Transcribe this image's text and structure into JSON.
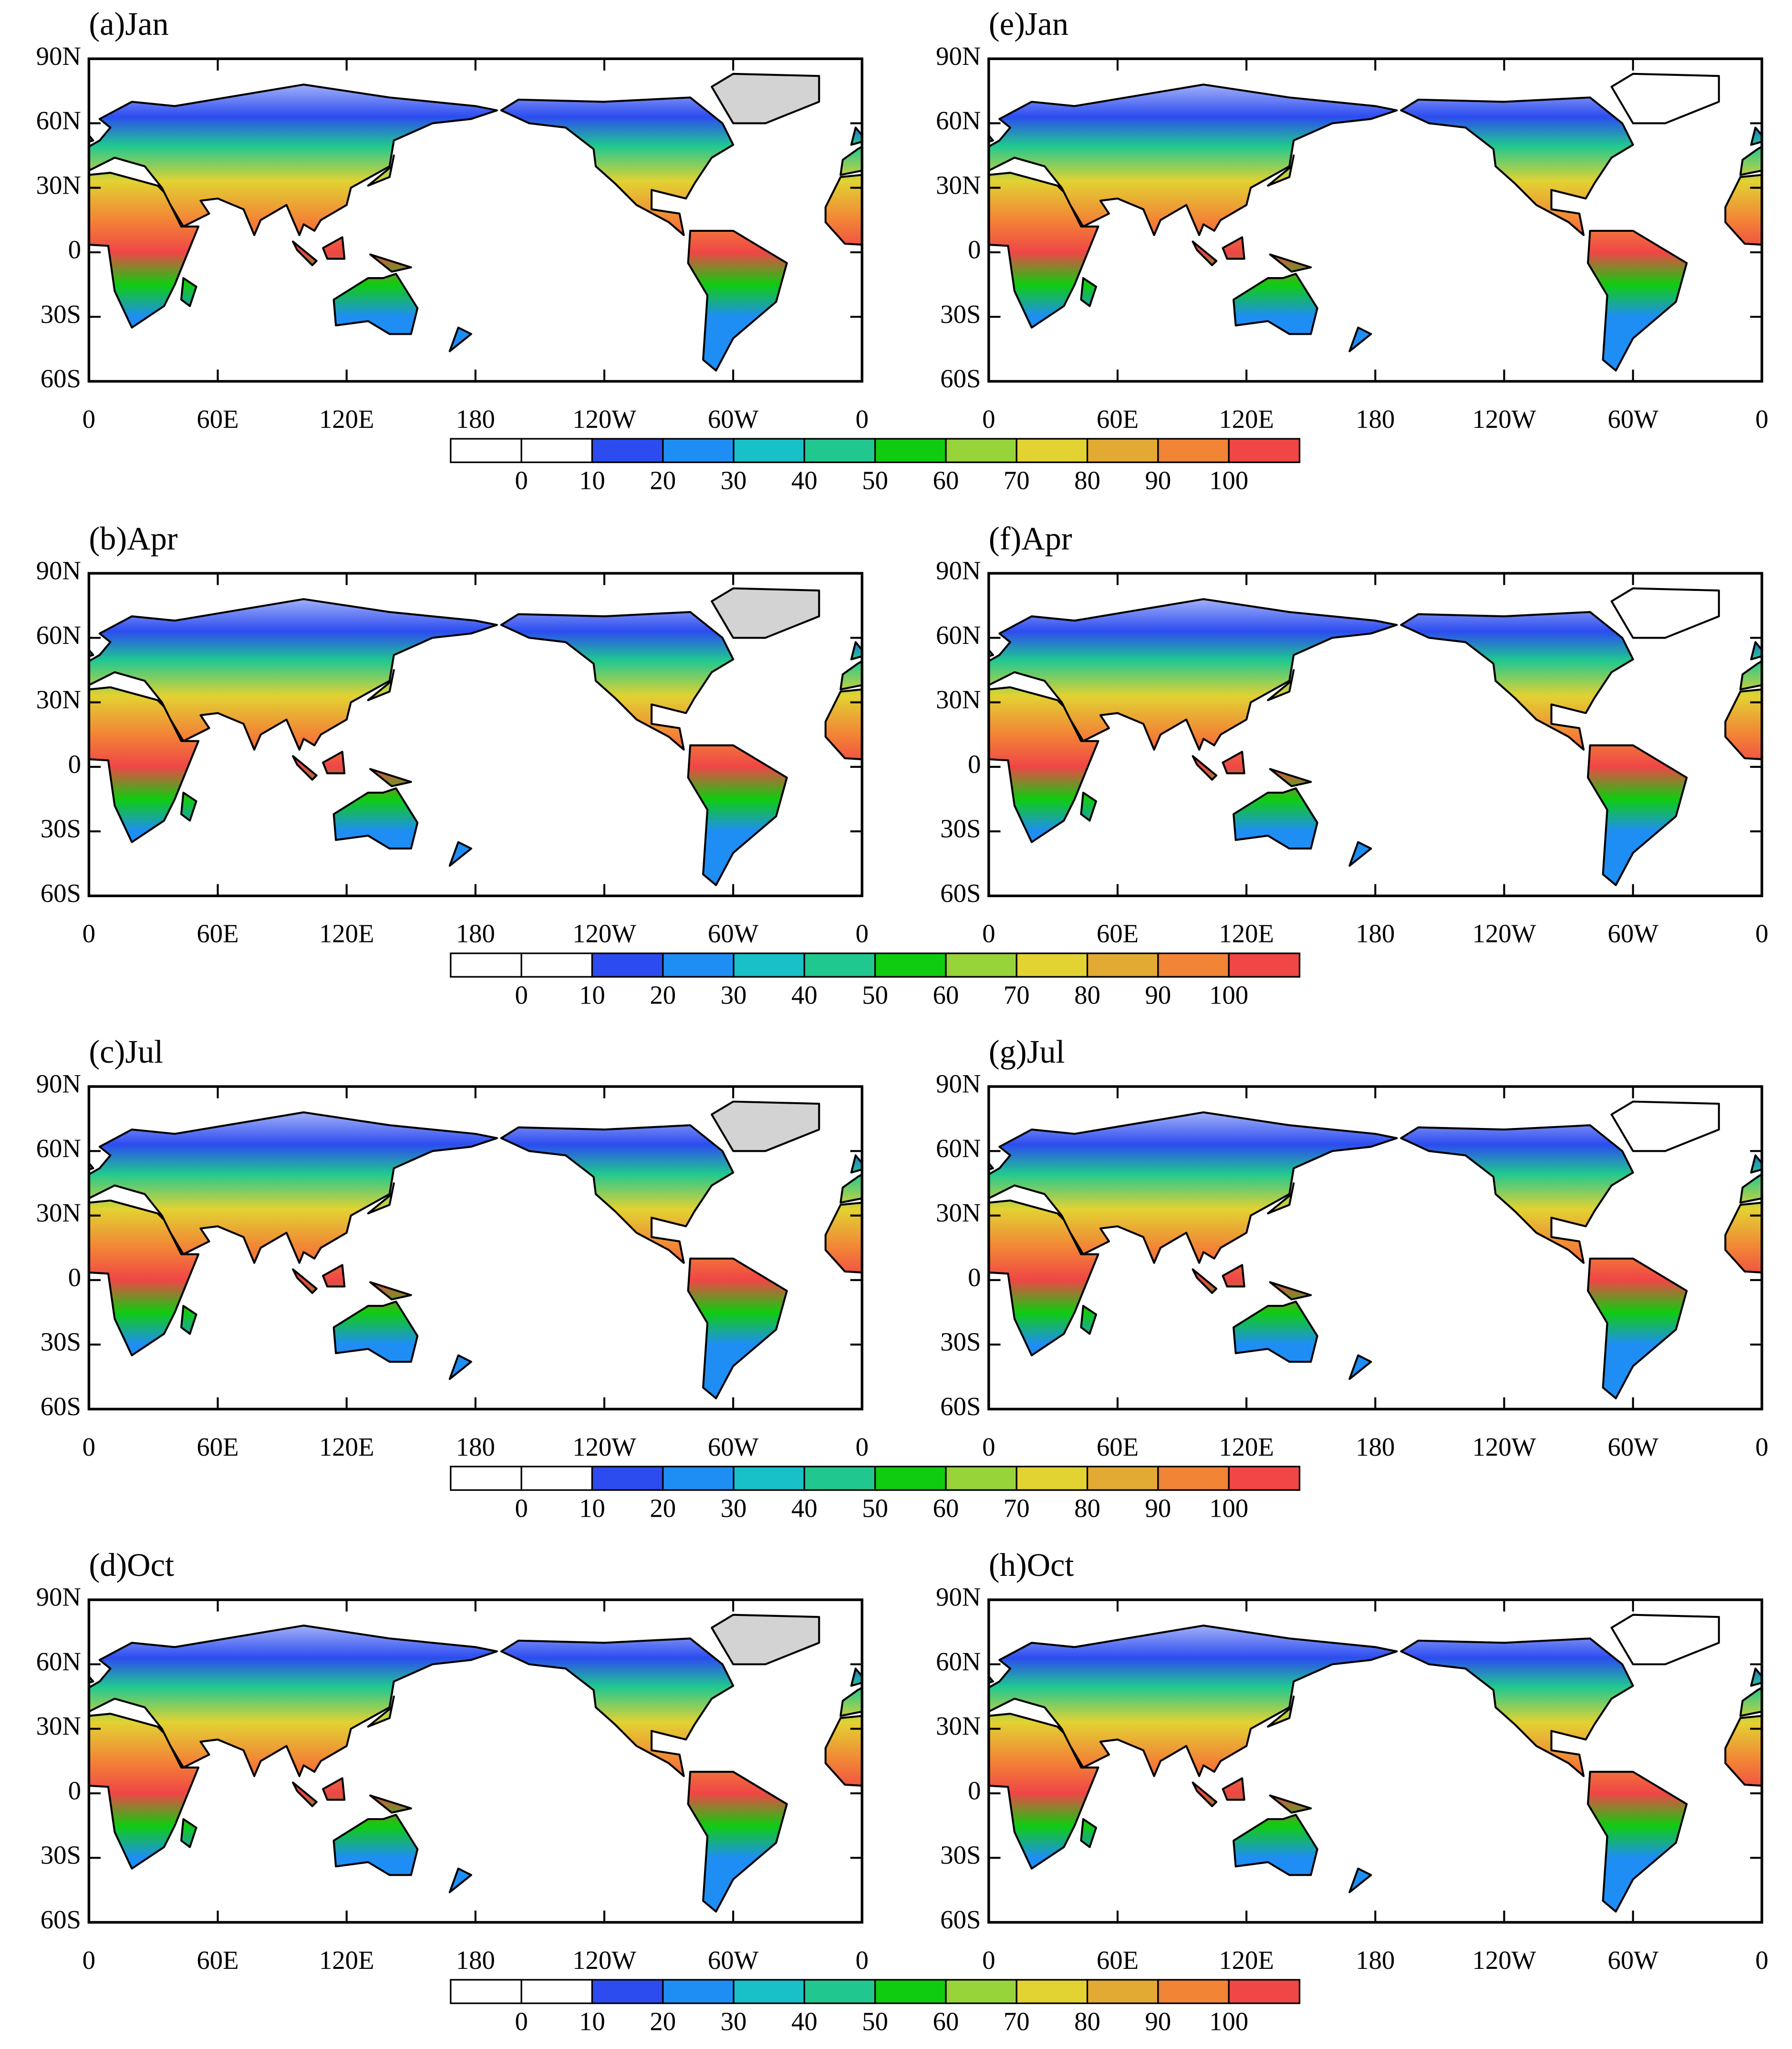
{
  "panels": [
    {
      "title": "(a)Jan"
    },
    {
      "title": "(b)Apr"
    },
    {
      "title": "(c)Jul"
    },
    {
      "title": "(d)Oct"
    },
    {
      "title": "(e)Jan"
    },
    {
      "title": "(f)Apr"
    },
    {
      "title": "(g)Jul"
    },
    {
      "title": "(h)Oct"
    }
  ],
  "lon_range": [
    0,
    360
  ],
  "lat_range": [
    -60,
    90
  ],
  "lat_ticks": [
    {
      "value": 90,
      "label": "90N"
    },
    {
      "value": 60,
      "label": "60N"
    },
    {
      "value": 30,
      "label": "30N"
    },
    0,
    {
      "value": -30,
      "label": "30S"
    },
    {
      "value": -60,
      "label": "60S"
    }
  ],
  "lon_ticks": [
    0,
    {
      "value": 60,
      "label": "60E"
    },
    {
      "value": 120,
      "label": "120E"
    },
    180,
    {
      "value": 240,
      "label": "120W"
    },
    {
      "value": 300,
      "label": "60W"
    },
    {
      "value": 360,
      "label": "0"
    }
  ],
  "colorbar": {
    "colors": [
      "#ffffff",
      "#ffffff",
      "#2c4cf0",
      "#1e8ef5",
      "#18c0c8",
      "#20c890",
      "#10cc10",
      "#96d43a",
      "#e2d232",
      "#e2aa32",
      "#f28436",
      "#f04646"
    ],
    "labels": [
      0,
      10,
      20,
      30,
      40,
      50,
      60,
      70,
      80,
      90,
      100
    ]
  }
}
